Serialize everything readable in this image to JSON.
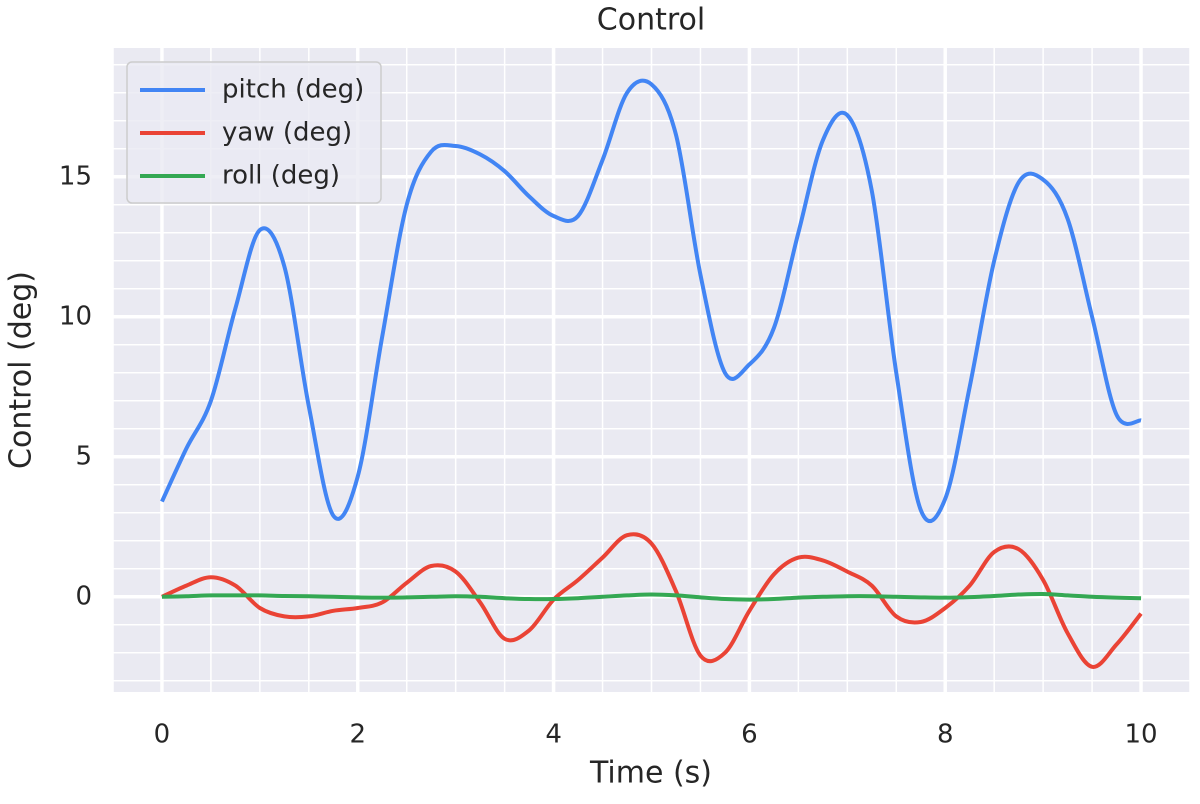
{
  "chart_data": {
    "type": "line",
    "title": "Control",
    "xlabel": "Time (s)",
    "ylabel": "Control (deg)",
    "x": [
      0,
      0.25,
      0.5,
      0.75,
      1,
      1.25,
      1.5,
      1.75,
      2,
      2.25,
      2.5,
      2.75,
      3,
      3.25,
      3.5,
      3.75,
      4,
      4.25,
      4.5,
      4.75,
      5,
      5.25,
      5.5,
      5.75,
      6,
      6.25,
      6.5,
      6.75,
      7,
      7.25,
      7.5,
      7.75,
      8,
      8.25,
      8.5,
      8.75,
      9,
      9.25,
      9.5,
      9.75,
      10
    ],
    "series": [
      {
        "name": "pitch (deg)",
        "color": "#4285f4",
        "values": [
          3.4,
          5.3,
          7.0,
          10.3,
          13.1,
          11.8,
          6.8,
          2.9,
          4.3,
          9.3,
          14.0,
          15.9,
          16.1,
          15.8,
          15.2,
          14.3,
          13.6,
          13.6,
          15.6,
          18.0,
          18.3,
          16.5,
          11.5,
          8.0,
          8.3,
          9.6,
          13.0,
          16.3,
          17.2,
          14.5,
          8.0,
          3.1,
          3.5,
          7.5,
          12.0,
          14.8,
          14.9,
          13.5,
          10.0,
          6.5,
          6.3
        ]
      },
      {
        "name": "yaw (deg)",
        "color": "#ea4335",
        "values": [
          0,
          0.4,
          0.7,
          0.4,
          -0.4,
          -0.7,
          -0.7,
          -0.5,
          -0.4,
          -0.2,
          0.5,
          1.1,
          0.9,
          -0.2,
          -1.5,
          -1.2,
          -0.1,
          0.6,
          1.4,
          2.2,
          1.9,
          0.2,
          -2.1,
          -2.0,
          -0.5,
          0.8,
          1.4,
          1.3,
          0.9,
          0.4,
          -0.7,
          -0.9,
          -0.4,
          0.4,
          1.6,
          1.7,
          0.6,
          -1.3,
          -2.5,
          -1.7,
          -0.6
        ]
      },
      {
        "name": "roll (deg)",
        "color": "#34a853",
        "values": [
          0,
          0.02,
          0.05,
          0.05,
          0.05,
          0.03,
          0.02,
          0,
          -0.02,
          -0.03,
          -0.02,
          0,
          0.02,
          0,
          -0.05,
          -0.08,
          -0.08,
          -0.05,
          0,
          0.05,
          0.08,
          0.05,
          -0.02,
          -0.08,
          -0.1,
          -0.08,
          -0.03,
          0,
          0.02,
          0.02,
          0,
          -0.02,
          -0.03,
          -0.01,
          0.03,
          0.08,
          0.1,
          0.05,
          0,
          -0.03,
          -0.05
        ]
      }
    ],
    "xlim": [
      -0.5,
      10.5
    ],
    "ylim": [
      -3.4,
      19.6
    ],
    "xticks": [
      0,
      2,
      4,
      6,
      8,
      10
    ],
    "yticks": [
      0,
      5,
      10,
      15
    ],
    "x_minor_ticks": [
      -0.5,
      0.5,
      1,
      1.5,
      2.5,
      3,
      3.5,
      4.5,
      5,
      5.5,
      6.5,
      7,
      7.5,
      8.5,
      9,
      9.5,
      10.5
    ],
    "y_minor_ticks": [
      -3,
      -2,
      -1,
      1,
      2,
      3,
      4,
      6,
      7,
      8,
      9,
      11,
      12,
      13,
      14,
      16,
      17,
      18,
      19
    ],
    "grid": true,
    "legend": "upper left"
  }
}
